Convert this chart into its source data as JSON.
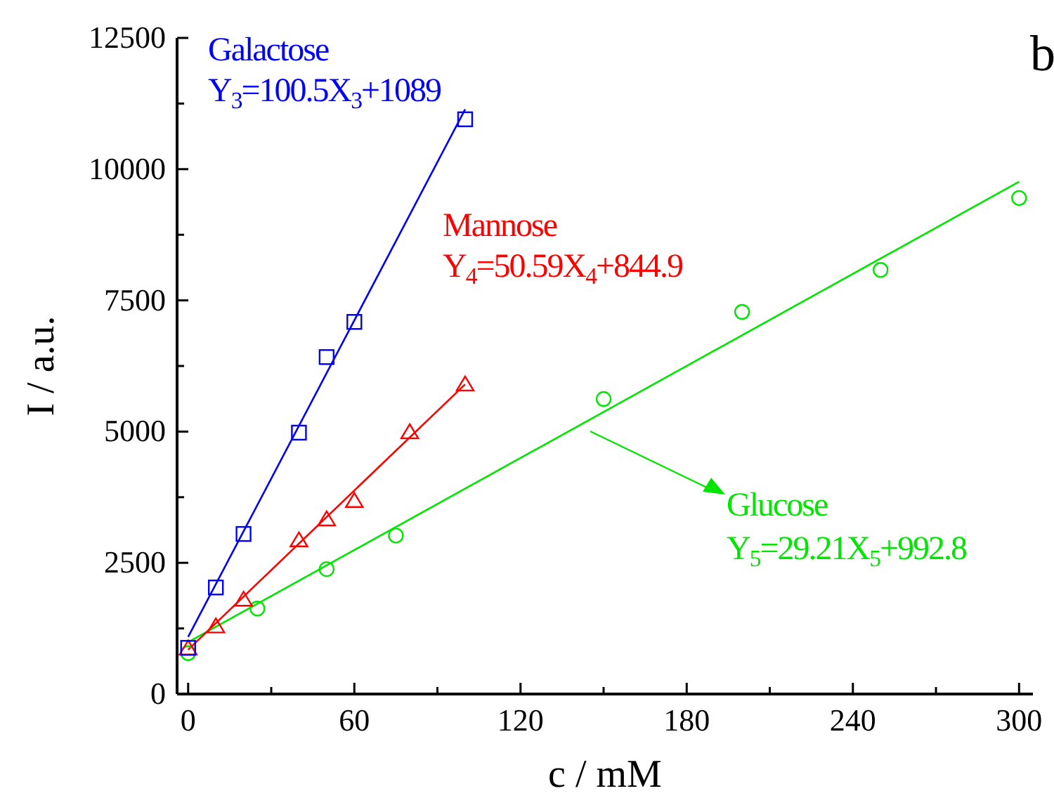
{
  "chart_data": {
    "type": "scatter",
    "xlabel": "c / mM",
    "ylabel": "I / a.u.",
    "xlim": [
      -4,
      305
    ],
    "ylim": [
      0,
      12500
    ],
    "xticks": [
      0,
      {
        "value": 30,
        "label": null
      },
      60,
      {
        "value": 90,
        "label": null
      },
      120,
      {
        "value": 150,
        "label": null
      },
      180,
      {
        "value": 210,
        "label": null
      },
      240,
      {
        "value": 270,
        "label": null
      },
      300
    ],
    "yticks": [
      0,
      {
        "value": 1250,
        "label": null
      },
      2500,
      {
        "value": 3750,
        "label": null
      },
      5000,
      {
        "value": 6250,
        "label": null
      },
      7500,
      {
        "value": 8750,
        "label": null
      },
      10000,
      {
        "value": 11250,
        "label": null
      },
      12500
    ],
    "grid": false,
    "series": [
      {
        "name": "Galactose",
        "color": "#0000ff",
        "marker": "square",
        "x": [
          0,
          10,
          20,
          40,
          50,
          60,
          100
        ],
        "values": [
          880,
          2030,
          3050,
          4980,
          6420,
          7090,
          10950
        ]
      },
      {
        "name": "Mannose",
        "color": "#ff0000",
        "marker": "triangle",
        "x": [
          0,
          10,
          20,
          40,
          50,
          60,
          80,
          100
        ],
        "values": [
          860,
          1280,
          1790,
          2920,
          3320,
          3670,
          4980,
          5890
        ]
      },
      {
        "name": "Glucose",
        "color": "#00e600",
        "marker": "circle",
        "x": [
          0,
          25,
          50,
          75,
          150,
          200,
          250,
          300
        ],
        "values": [
          780,
          1630,
          2380,
          3020,
          5620,
          7280,
          8080,
          9450
        ]
      },
      {
        "type": "line",
        "color": "#0000ff",
        "marker": "none",
        "x": [
          0,
          100
        ],
        "values": [
          1090,
          11140
        ]
      },
      {
        "type": "line",
        "color": "#ff0000",
        "marker": "none",
        "x": [
          0,
          100
        ],
        "values": [
          845,
          5900
        ]
      },
      {
        "type": "line",
        "color": "#00e600",
        "marker": "none",
        "x": [
          0,
          300
        ],
        "values": [
          990,
          9760
        ]
      }
    ],
    "annotations": [
      "Y$_{3}$=100.5X$_{3}$+1089",
      "Y$_{4}$=50.59X$_{4}$+844.9",
      "Y$_{5}$=29.21X$_{5}$+992.8",
      "b"
    ]
  }
}
